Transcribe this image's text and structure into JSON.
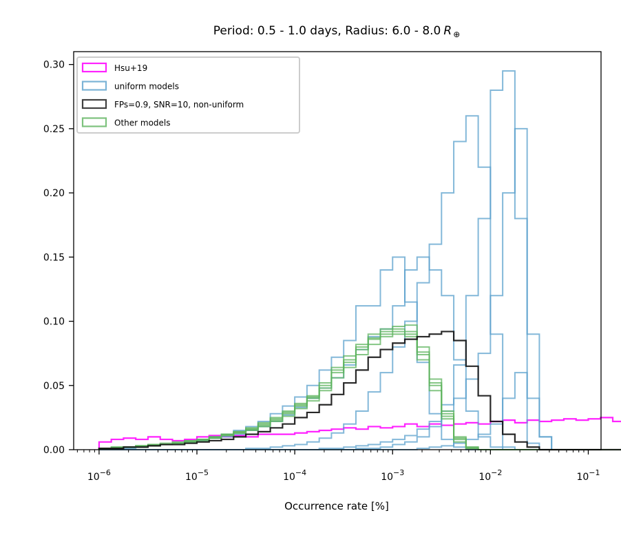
{
  "chart_data": {
    "type": "histogram",
    "title_prefix": "Period: 0.5 - 1.0 days, Radius: 6.0 - 8.0",
    "title_symbol": "R",
    "title_subscript": "⊕",
    "xlabel": "Occurrence rate [%]",
    "ylabel": "",
    "x_scale": "log",
    "xlim": [
      5.5e-07,
      0.135
    ],
    "ylim": [
      0,
      0.31
    ],
    "x_ticks": [
      {
        "value": 1e-06,
        "base": "10",
        "exp": "−6"
      },
      {
        "value": 1e-05,
        "base": "10",
        "exp": "−5"
      },
      {
        "value": 0.0001,
        "base": "10",
        "exp": "−4"
      },
      {
        "value": 0.001,
        "base": "10",
        "exp": "−3"
      },
      {
        "value": 0.01,
        "base": "10",
        "exp": "−2"
      },
      {
        "value": 0.1,
        "base": "10",
        "exp": "−1"
      }
    ],
    "y_ticks": [
      {
        "value": 0.0,
        "label": "0.00"
      },
      {
        "value": 0.05,
        "label": "0.05"
      },
      {
        "value": 0.1,
        "label": "0.10"
      },
      {
        "value": 0.15,
        "label": "0.15"
      },
      {
        "value": 0.2,
        "label": "0.20"
      },
      {
        "value": 0.25,
        "label": "0.25"
      },
      {
        "value": 0.3,
        "label": "0.30"
      }
    ],
    "legend_position": "top-left",
    "legend": [
      {
        "label": "Hsu+19",
        "color": "#ff22ff"
      },
      {
        "label": "uniform models",
        "color": "#5aa0cc"
      },
      {
        "label": "FPs=0.9, SNR=10, non-uniform",
        "color": "#111111"
      },
      {
        "label": "Other models",
        "color": "#5cb35c"
      }
    ],
    "series": [
      {
        "legend": 0,
        "color": "#ff22ff",
        "opacity": 1.0,
        "width": 2.2,
        "start": 1e-06,
        "values": [
          0.006,
          0.008,
          0.009,
          0.008,
          0.01,
          0.008,
          0.007,
          0.008,
          0.01,
          0.011,
          0.01,
          0.011,
          0.01,
          0.012,
          0.012,
          0.012,
          0.013,
          0.014,
          0.015,
          0.016,
          0.017,
          0.016,
          0.018,
          0.017,
          0.018,
          0.02,
          0.018,
          0.02,
          0.019,
          0.02,
          0.021,
          0.02,
          0.022,
          0.023,
          0.021,
          0.023,
          0.022,
          0.023,
          0.024,
          0.023,
          0.024,
          0.025,
          0.022,
          0.023,
          0.022,
          0.021,
          0.021,
          0.012
        ]
      },
      {
        "legend": 1,
        "color": "#5aa0cc",
        "opacity": 0.75,
        "width": 2.0,
        "start": 1e-06,
        "values": [
          0,
          0,
          0,
          0,
          0,
          0,
          0,
          0,
          0,
          0,
          0,
          0,
          0,
          0,
          0,
          0,
          0,
          0,
          0,
          0,
          0,
          0.001,
          0.001,
          0.002,
          0.004,
          0.006,
          0.01,
          0.018,
          0.035,
          0.066,
          0.12,
          0.18,
          0.28,
          0.295,
          0.18,
          0.005,
          0,
          0,
          0,
          0,
          0,
          0,
          0,
          0,
          0,
          0,
          0,
          0
        ]
      },
      {
        "legend": 1,
        "color": "#5aa0cc",
        "opacity": 0.75,
        "width": 2.0,
        "start": 1e-06,
        "values": [
          0,
          0,
          0,
          0,
          0,
          0,
          0,
          0,
          0,
          0,
          0,
          0,
          0.001,
          0.001,
          0.002,
          0.003,
          0.004,
          0.006,
          0.009,
          0.013,
          0.02,
          0.03,
          0.045,
          0.06,
          0.08,
          0.1,
          0.13,
          0.16,
          0.2,
          0.24,
          0.26,
          0.22,
          0.09,
          0.002,
          0,
          0,
          0,
          0,
          0,
          0,
          0,
          0,
          0,
          0,
          0,
          0,
          0,
          0
        ]
      },
      {
        "legend": 1,
        "color": "#5aa0cc",
        "opacity": 0.75,
        "width": 2.0,
        "start": 1e-06,
        "values": [
          0.001,
          0.001,
          0.002,
          0.002,
          0.003,
          0.004,
          0.005,
          0.006,
          0.008,
          0.01,
          0.012,
          0.015,
          0.018,
          0.022,
          0.028,
          0.034,
          0.041,
          0.05,
          0.062,
          0.072,
          0.085,
          0.112,
          0.112,
          0.14,
          0.15,
          0.115,
          0.068,
          0.028,
          0.008,
          0.002,
          0,
          0,
          0,
          0,
          0,
          0,
          0,
          0,
          0,
          0,
          0,
          0,
          0,
          0,
          0,
          0,
          0,
          0
        ]
      },
      {
        "legend": 1,
        "color": "#5aa0cc",
        "opacity": 0.75,
        "width": 2.0,
        "start": 1e-06,
        "values": [
          0.001,
          0.001,
          0.001,
          0.002,
          0.003,
          0.004,
          0.005,
          0.006,
          0.007,
          0.009,
          0.01,
          0.012,
          0.015,
          0.018,
          0.022,
          0.027,
          0.033,
          0.04,
          0.048,
          0.056,
          0.066,
          0.078,
          0.088,
          0.094,
          0.112,
          0.14,
          0.15,
          0.14,
          0.12,
          0.07,
          0.03,
          0.01,
          0.002,
          0,
          0,
          0,
          0,
          0,
          0,
          0,
          0,
          0,
          0,
          0,
          0,
          0,
          0,
          0
        ]
      },
      {
        "legend": 1,
        "color": "#5aa0cc",
        "opacity": 0.75,
        "width": 2.0,
        "start": 1e-06,
        "values": [
          0,
          0,
          0,
          0,
          0,
          0,
          0,
          0,
          0,
          0,
          0,
          0,
          0,
          0,
          0,
          0,
          0,
          0,
          0.001,
          0.001,
          0.002,
          0.003,
          0.004,
          0.006,
          0.008,
          0.011,
          0.016,
          0.022,
          0.03,
          0.04,
          0.055,
          0.075,
          0.12,
          0.2,
          0.25,
          0.09,
          0.01,
          0,
          0,
          0,
          0,
          0,
          0,
          0,
          0,
          0,
          0,
          0
        ]
      },
      {
        "legend": 1,
        "color": "#5aa0cc",
        "opacity": 0.75,
        "width": 2.0,
        "start": 1e-06,
        "values": [
          0,
          0,
          0,
          0,
          0,
          0,
          0,
          0,
          0,
          0,
          0,
          0,
          0,
          0,
          0,
          0,
          0,
          0,
          0,
          0,
          0,
          0,
          0,
          0,
          0,
          0,
          0.001,
          0.002,
          0.003,
          0.005,
          0.008,
          0.012,
          0.02,
          0.04,
          0.06,
          0.04,
          0.01,
          0,
          0,
          0,
          0,
          0,
          0,
          0,
          0,
          0,
          0,
          0
        ]
      },
      {
        "legend": 3,
        "color": "#5cb35c",
        "opacity": 0.75,
        "width": 2.0,
        "start": 1e-06,
        "values": [
          0.001,
          0.002,
          0.002,
          0.003,
          0.004,
          0.005,
          0.006,
          0.007,
          0.008,
          0.01,
          0.012,
          0.014,
          0.017,
          0.021,
          0.025,
          0.03,
          0.036,
          0.042,
          0.05,
          0.062,
          0.07,
          0.082,
          0.09,
          0.094,
          0.096,
          0.097,
          0.08,
          0.055,
          0.03,
          0.01,
          0.002,
          0,
          0,
          0,
          0,
          0,
          0,
          0,
          0,
          0,
          0,
          0,
          0,
          0,
          0,
          0,
          0,
          0
        ]
      },
      {
        "legend": 3,
        "color": "#5cb35c",
        "opacity": 0.75,
        "width": 2.0,
        "start": 1e-06,
        "values": [
          0.001,
          0.001,
          0.002,
          0.002,
          0.003,
          0.004,
          0.005,
          0.006,
          0.007,
          0.009,
          0.011,
          0.013,
          0.016,
          0.019,
          0.023,
          0.028,
          0.034,
          0.04,
          0.048,
          0.06,
          0.068,
          0.078,
          0.086,
          0.09,
          0.092,
          0.09,
          0.074,
          0.05,
          0.026,
          0.008,
          0.001,
          0,
          0,
          0,
          0,
          0,
          0,
          0,
          0,
          0,
          0,
          0,
          0,
          0,
          0,
          0,
          0,
          0
        ]
      },
      {
        "legend": 3,
        "color": "#5cb35c",
        "opacity": 0.75,
        "width": 2.0,
        "start": 1e-06,
        "values": [
          0.001,
          0.002,
          0.002,
          0.003,
          0.004,
          0.004,
          0.005,
          0.006,
          0.008,
          0.009,
          0.011,
          0.013,
          0.015,
          0.018,
          0.022,
          0.026,
          0.032,
          0.038,
          0.046,
          0.056,
          0.064,
          0.074,
          0.082,
          0.088,
          0.09,
          0.088,
          0.07,
          0.046,
          0.024,
          0.006,
          0.001,
          0,
          0,
          0,
          0,
          0,
          0,
          0,
          0,
          0,
          0,
          0,
          0,
          0,
          0,
          0,
          0,
          0
        ]
      },
      {
        "legend": 3,
        "color": "#5cb35c",
        "opacity": 0.75,
        "width": 2.0,
        "start": 1e-06,
        "values": [
          0.001,
          0.001,
          0.002,
          0.003,
          0.003,
          0.004,
          0.005,
          0.007,
          0.008,
          0.01,
          0.012,
          0.014,
          0.016,
          0.02,
          0.024,
          0.029,
          0.035,
          0.041,
          0.052,
          0.064,
          0.073,
          0.08,
          0.087,
          0.092,
          0.094,
          0.092,
          0.076,
          0.052,
          0.028,
          0.009,
          0.002,
          0,
          0,
          0,
          0,
          0,
          0,
          0,
          0,
          0,
          0,
          0,
          0,
          0,
          0,
          0,
          0,
          0
        ]
      },
      {
        "legend": 2,
        "color": "#111111",
        "opacity": 0.9,
        "width": 2.2,
        "start": 1e-06,
        "values": [
          0.001,
          0.001,
          0.002,
          0.002,
          0.003,
          0.004,
          0.004,
          0.005,
          0.006,
          0.007,
          0.008,
          0.01,
          0.012,
          0.014,
          0.017,
          0.02,
          0.025,
          0.029,
          0.035,
          0.043,
          0.052,
          0.062,
          0.072,
          0.078,
          0.083,
          0.086,
          0.088,
          0.09,
          0.092,
          0.085,
          0.065,
          0.042,
          0.022,
          0.012,
          0.006,
          0.002,
          0,
          0,
          0,
          0,
          0,
          0,
          0,
          0,
          0,
          0,
          0,
          0
        ]
      }
    ]
  }
}
